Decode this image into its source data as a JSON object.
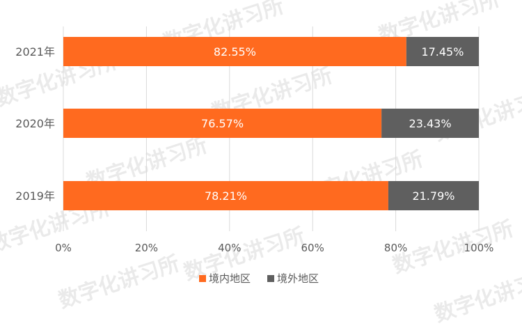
{
  "chart_data": {
    "type": "bar",
    "orientation": "horizontal",
    "stacked": true,
    "percent": true,
    "categories": [
      "2021年",
      "2020年",
      "2019年"
    ],
    "series": [
      {
        "name": "境内地区",
        "values": [
          82.55,
          76.57,
          78.21
        ],
        "labels": [
          "82.55%",
          "76.57%",
          "78.21%"
        ],
        "color": "#FF6A1F"
      },
      {
        "name": "境外地区",
        "values": [
          17.45,
          23.43,
          21.79
        ],
        "labels": [
          "17.45%",
          "23.43%",
          "21.79%"
        ],
        "color": "#5F5F5F"
      }
    ],
    "xlim": [
      0,
      100
    ],
    "xticks": [
      0,
      20,
      40,
      60,
      80,
      100
    ],
    "xtick_labels": [
      "0%",
      "20%",
      "40%",
      "60%",
      "80%",
      "100%"
    ],
    "grid": true,
    "legend_position": "bottom"
  },
  "watermark": "数字化讲习所"
}
